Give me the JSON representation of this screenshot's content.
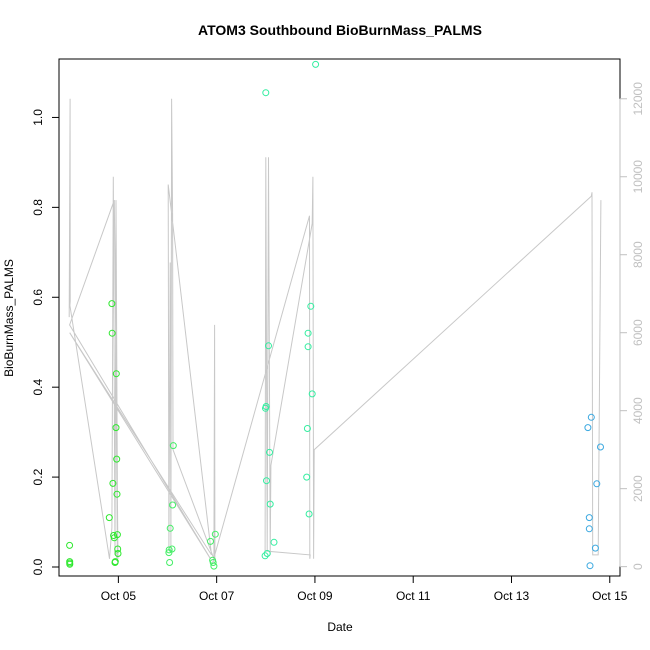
{
  "chart_data": {
    "type": "scatter",
    "title": "ATOM3 Southbound BioBurnMass_PALMS",
    "xlabel": "Date",
    "ylabel": "BioBurnMass_PALMS",
    "x_ticks": [
      "Oct 05",
      "Oct 07",
      "Oct 09",
      "Oct 11",
      "Oct 13",
      "Oct 15"
    ],
    "y_ticks": [
      "0.0",
      "0.2",
      "0.4",
      "0.6",
      "0.8",
      "1.0"
    ],
    "y2_ticks": [
      "0",
      "2000",
      "4000",
      "6000",
      "8000",
      "10000",
      "12000"
    ],
    "xlim": [
      "2017-10-03T19:00",
      "2017-10-15T05:00"
    ],
    "ylim": [
      -0.02,
      1.13
    ],
    "y2lim": [
      -240,
      13020
    ],
    "grid": false,
    "legend": "none",
    "colors": {
      "axis": "#000000",
      "secondary_axis": "#c0c0c0",
      "altitude_line": "#c8c8c8",
      "early_points": "#33ff33",
      "mid_points": "#33ffaa",
      "late_points": "#33aaee"
    },
    "series": [
      {
        "color": "#2ee82e",
        "points": [
          [
            "2017-10-04T00:12",
            0.048
          ],
          [
            "2017-10-04T00:14",
            0.012
          ],
          [
            "2017-10-04T00:15",
            0.009
          ],
          [
            "2017-10-04T00:17",
            0.006
          ],
          [
            "2017-10-04T19:35",
            0.11
          ],
          [
            "2017-10-04T20:50",
            0.586
          ],
          [
            "2017-10-04T21:00",
            0.52
          ],
          [
            "2017-10-04T21:20",
            0.186
          ],
          [
            "2017-10-04T21:40",
            0.07
          ],
          [
            "2017-10-04T22:00",
            0.065
          ],
          [
            "2017-10-04T22:20",
            0.01
          ],
          [
            "2017-10-04T22:30",
            0.012
          ],
          [
            "2017-10-04T22:50",
            0.31
          ],
          [
            "2017-10-04T23:00",
            0.43
          ],
          [
            "2017-10-04T23:10",
            0.24
          ],
          [
            "2017-10-04T23:20",
            0.162
          ],
          [
            "2017-10-04T23:30",
            0.072
          ],
          [
            "2017-10-04T23:40",
            0.04
          ],
          [
            "2017-10-04T23:50",
            0.03
          ]
        ]
      },
      {
        "color": "#44ee66",
        "points": [
          [
            "2017-10-06T00:40",
            0.032
          ],
          [
            "2017-10-06T00:50",
            0.038
          ],
          [
            "2017-10-06T01:00",
            0.01
          ],
          [
            "2017-10-06T01:20",
            0.086
          ],
          [
            "2017-10-06T02:10",
            0.04
          ],
          [
            "2017-10-06T02:30",
            0.138
          ],
          [
            "2017-10-06T02:50",
            0.27
          ],
          [
            "2017-10-06T21:00",
            0.057
          ],
          [
            "2017-10-06T22:00",
            0.015
          ],
          [
            "2017-10-06T22:20",
            0.01
          ],
          [
            "2017-10-06T22:40",
            0.002
          ],
          [
            "2017-10-06T23:20",
            0.073
          ]
        ]
      },
      {
        "color": "#33eea0",
        "points": [
          [
            "2017-10-07T23:40",
            0.025
          ],
          [
            "2017-10-07T23:50",
            0.353
          ],
          [
            "2017-10-08T00:00",
            1.055
          ],
          [
            "2017-10-08T00:10",
            0.357
          ],
          [
            "2017-10-08T00:20",
            0.192
          ],
          [
            "2017-10-08T00:40",
            0.03
          ],
          [
            "2017-10-08T01:20",
            0.492
          ],
          [
            "2017-10-08T01:50",
            0.255
          ],
          [
            "2017-10-08T02:10",
            0.14
          ],
          [
            "2017-10-08T04:00",
            0.055
          ],
          [
            "2017-10-08T20:00",
            0.2
          ],
          [
            "2017-10-08T20:20",
            0.308
          ],
          [
            "2017-10-08T20:40",
            0.52
          ],
          [
            "2017-10-08T20:40",
            0.49
          ],
          [
            "2017-10-08T21:10",
            0.118
          ],
          [
            "2017-10-08T22:00",
            0.58
          ],
          [
            "2017-10-08T22:40",
            0.385
          ],
          [
            "2017-10-09T00:20",
            1.118
          ]
        ]
      },
      {
        "color": "#3aa8e0",
        "points": [
          [
            "2017-10-14T13:20",
            0.31
          ],
          [
            "2017-10-14T14:00",
            0.11
          ],
          [
            "2017-10-14T14:00",
            0.085
          ],
          [
            "2017-10-14T14:20",
            0.003
          ],
          [
            "2017-10-14T15:00",
            0.333
          ],
          [
            "2017-10-14T17:00",
            0.042
          ],
          [
            "2017-10-14T17:40",
            0.185
          ],
          [
            "2017-10-14T19:30",
            0.267
          ]
        ]
      }
    ],
    "altitude_series": [
      [
        "2017-10-04T00:00",
        6400
      ],
      [
        "2017-10-04T00:25",
        12000
      ],
      [
        "2017-10-04T00:28",
        6800
      ],
      [
        "2017-10-04T00:20",
        6700
      ],
      [
        "2017-10-04T19:40",
        200
      ],
      [
        "2017-10-04T20:50",
        1000
      ],
      [
        "2017-10-04T21:30",
        10000
      ],
      [
        "2017-10-04T22:20",
        300
      ],
      [
        "2017-10-04T22:50",
        9400
      ],
      [
        "2017-10-04T23:40",
        300
      ],
      [
        "2017-10-04T22:00",
        400
      ],
      [
        "2017-10-04T23:30",
        200
      ],
      [
        "2017-10-04T22:40",
        6500
      ],
      [
        "2017-10-04T23:50",
        200
      ],
      [
        "2017-10-04T22:00",
        9400
      ],
      [
        "2017-10-04T00:10",
        6200
      ],
      [
        "2017-10-06T21:00",
        200
      ],
      [
        "2017-10-04T00:15",
        6000
      ],
      [
        "2017-10-06T21:30",
        300
      ],
      [
        "2017-10-06T00:20",
        9800
      ],
      [
        "2017-10-06T00:40",
        400
      ],
      [
        "2017-10-06T01:20",
        7800
      ],
      [
        "2017-10-06T01:40",
        400
      ],
      [
        "2017-10-06T02:00",
        12000
      ],
      [
        "2017-10-06T02:30",
        9000
      ],
      [
        "2017-10-06T02:40",
        3000
      ],
      [
        "2017-10-06T22:40",
        200
      ],
      [
        "2017-10-06T23:00",
        6200
      ],
      [
        "2017-10-06T23:10",
        200
      ],
      [
        "2017-10-06T22:00",
        100
      ],
      [
        "2017-10-08T21:20",
        9000
      ],
      [
        "2017-10-08T21:30",
        200
      ],
      [
        "2017-10-08T21:40",
        300
      ],
      [
        "2017-10-07T23:40",
        400
      ],
      [
        "2017-10-08T00:00",
        10500
      ],
      [
        "2017-10-08T00:40",
        400
      ],
      [
        "2017-10-08T01:20",
        10500
      ],
      [
        "2017-10-08T02:10",
        300
      ],
      [
        "2017-10-08T02:30",
        2600
      ],
      [
        "2017-10-08T22:40",
        8800
      ],
      [
        "2017-10-08T23:00",
        10000
      ],
      [
        "2017-10-08T23:20",
        200
      ],
      [
        "2017-10-08T23:40",
        3000
      ],
      [
        "2017-10-14T15:00",
        9500
      ],
      [
        "2017-10-14T15:20",
        9600
      ],
      [
        "2017-10-14T15:40",
        300
      ],
      [
        "2017-10-14T18:20",
        300
      ],
      [
        "2017-10-14T19:40",
        9400
      ]
    ]
  }
}
